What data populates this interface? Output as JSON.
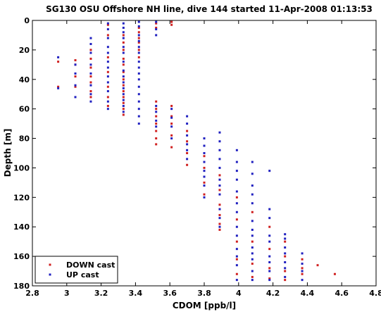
{
  "chart_data": {
    "type": "scatter",
    "title": "SG130 OSU Offshore NH line, dive 144 started 11-Apr-2008 01:13:53",
    "xlabel": "CDOM [ppb/l]",
    "ylabel": "Depth [m]",
    "xlim": [
      2.8,
      4.8
    ],
    "ylim": [
      0,
      180
    ],
    "y_reversed": true,
    "xticks": [
      "2.8",
      "3",
      "3.2",
      "3.4",
      "3.6",
      "3.8",
      "4",
      "4.2",
      "4.4",
      "4.6",
      "4.8"
    ],
    "yticks": [
      "0",
      "20",
      "40",
      "60",
      "80",
      "100",
      "120",
      "140",
      "160",
      "180"
    ],
    "grid": false,
    "legend_position": "bottom-left",
    "series": [
      {
        "name": "DOWN cast",
        "color": "#d02020",
        "points": [
          [
            3.61,
            1
          ],
          [
            3.61,
            3
          ],
          [
            3.52,
            2
          ],
          [
            3.52,
            5
          ],
          [
            3.42,
            5
          ],
          [
            3.42,
            8
          ],
          [
            3.42,
            12
          ],
          [
            3.42,
            15
          ],
          [
            3.42,
            20
          ],
          [
            3.42,
            25
          ],
          [
            3.33,
            10
          ],
          [
            3.33,
            15
          ],
          [
            3.33,
            20
          ],
          [
            3.33,
            26
          ],
          [
            3.33,
            30
          ],
          [
            3.33,
            35
          ],
          [
            3.33,
            40
          ],
          [
            3.33,
            44
          ],
          [
            3.33,
            48
          ],
          [
            3.33,
            52
          ],
          [
            3.33,
            56
          ],
          [
            3.33,
            60
          ],
          [
            3.33,
            64
          ],
          [
            3.24,
            3
          ],
          [
            3.24,
            10
          ],
          [
            3.24,
            25
          ],
          [
            3.24,
            35
          ],
          [
            3.24,
            45
          ],
          [
            3.24,
            52
          ],
          [
            3.24,
            58
          ],
          [
            3.14,
            20
          ],
          [
            3.14,
            26
          ],
          [
            3.14,
            32
          ],
          [
            3.14,
            38
          ],
          [
            3.14,
            42
          ],
          [
            3.14,
            48
          ],
          [
            3.14,
            52
          ],
          [
            3.05,
            27
          ],
          [
            3.05,
            30
          ],
          [
            3.05,
            38
          ],
          [
            3.05,
            45
          ],
          [
            2.95,
            28
          ],
          [
            2.95,
            45
          ],
          [
            3.52,
            55
          ],
          [
            3.52,
            60
          ],
          [
            3.52,
            65
          ],
          [
            3.52,
            70
          ],
          [
            3.52,
            75
          ],
          [
            3.52,
            80
          ],
          [
            3.52,
            84
          ],
          [
            3.61,
            58
          ],
          [
            3.61,
            65
          ],
          [
            3.61,
            70
          ],
          [
            3.61,
            78
          ],
          [
            3.61,
            86
          ],
          [
            3.7,
            75
          ],
          [
            3.7,
            82
          ],
          [
            3.7,
            90
          ],
          [
            3.7,
            98
          ],
          [
            3.8,
            92
          ],
          [
            3.8,
            100
          ],
          [
            3.8,
            110
          ],
          [
            3.8,
            118
          ],
          [
            3.89,
            105
          ],
          [
            3.89,
            115
          ],
          [
            3.89,
            125
          ],
          [
            3.89,
            132
          ],
          [
            3.89,
            138
          ],
          [
            3.89,
            142
          ],
          [
            3.99,
            120
          ],
          [
            3.99,
            135
          ],
          [
            3.99,
            150
          ],
          [
            3.99,
            162
          ],
          [
            3.99,
            172
          ],
          [
            4.08,
            130
          ],
          [
            4.08,
            150
          ],
          [
            4.08,
            165
          ],
          [
            4.08,
            174
          ],
          [
            4.18,
            140
          ],
          [
            4.18,
            155
          ],
          [
            4.18,
            168
          ],
          [
            4.18,
            175
          ],
          [
            4.27,
            150
          ],
          [
            4.27,
            160
          ],
          [
            4.27,
            170
          ],
          [
            4.27,
            176
          ],
          [
            4.37,
            162
          ],
          [
            4.37,
            168
          ],
          [
            4.37,
            172
          ],
          [
            4.46,
            166
          ],
          [
            4.56,
            172
          ]
        ]
      },
      {
        "name": "UP cast",
        "color": "#2020c0",
        "points": [
          [
            2.95,
            25
          ],
          [
            2.95,
            46
          ],
          [
            3.05,
            30
          ],
          [
            3.05,
            36
          ],
          [
            3.05,
            44
          ],
          [
            3.05,
            52
          ],
          [
            3.14,
            12
          ],
          [
            3.14,
            16
          ],
          [
            3.14,
            22
          ],
          [
            3.14,
            30
          ],
          [
            3.14,
            36
          ],
          [
            3.14,
            44
          ],
          [
            3.14,
            50
          ],
          [
            3.14,
            55
          ],
          [
            3.24,
            2
          ],
          [
            3.24,
            6
          ],
          [
            3.24,
            12
          ],
          [
            3.24,
            18
          ],
          [
            3.24,
            22
          ],
          [
            3.24,
            28
          ],
          [
            3.24,
            32
          ],
          [
            3.24,
            38
          ],
          [
            3.24,
            42
          ],
          [
            3.24,
            48
          ],
          [
            3.24,
            55
          ],
          [
            3.24,
            60
          ],
          [
            3.33,
            2
          ],
          [
            3.33,
            5
          ],
          [
            3.33,
            8
          ],
          [
            3.33,
            12
          ],
          [
            3.33,
            18
          ],
          [
            3.33,
            22
          ],
          [
            3.33,
            28
          ],
          [
            3.33,
            34
          ],
          [
            3.33,
            38
          ],
          [
            3.33,
            42
          ],
          [
            3.33,
            46
          ],
          [
            3.33,
            50
          ],
          [
            3.33,
            54
          ],
          [
            3.33,
            58
          ],
          [
            3.33,
            62
          ],
          [
            3.42,
            1
          ],
          [
            3.42,
            4
          ],
          [
            3.42,
            10
          ],
          [
            3.42,
            14
          ],
          [
            3.42,
            18
          ],
          [
            3.42,
            22
          ],
          [
            3.42,
            28
          ],
          [
            3.42,
            32
          ],
          [
            3.42,
            36
          ],
          [
            3.42,
            40
          ],
          [
            3.42,
            45
          ],
          [
            3.42,
            50
          ],
          [
            3.42,
            55
          ],
          [
            3.42,
            60
          ],
          [
            3.42,
            65
          ],
          [
            3.42,
            70
          ],
          [
            3.52,
            1
          ],
          [
            3.52,
            6
          ],
          [
            3.52,
            10
          ],
          [
            3.52,
            58
          ],
          [
            3.52,
            62
          ],
          [
            3.52,
            68
          ],
          [
            3.52,
            72
          ],
          [
            3.61,
            60
          ],
          [
            3.61,
            66
          ],
          [
            3.61,
            72
          ],
          [
            3.61,
            80
          ],
          [
            3.7,
            65
          ],
          [
            3.7,
            70
          ],
          [
            3.7,
            78
          ],
          [
            3.7,
            84
          ],
          [
            3.7,
            88
          ],
          [
            3.7,
            94
          ],
          [
            3.8,
            80
          ],
          [
            3.8,
            85
          ],
          [
            3.8,
            90
          ],
          [
            3.8,
            96
          ],
          [
            3.8,
            102
          ],
          [
            3.8,
            106
          ],
          [
            3.8,
            112
          ],
          [
            3.8,
            120
          ],
          [
            3.89,
            76
          ],
          [
            3.89,
            82
          ],
          [
            3.89,
            88
          ],
          [
            3.89,
            94
          ],
          [
            3.89,
            100
          ],
          [
            3.89,
            108
          ],
          [
            3.89,
            112
          ],
          [
            3.89,
            118
          ],
          [
            3.89,
            128
          ],
          [
            3.89,
            134
          ],
          [
            3.89,
            140
          ],
          [
            3.99,
            88
          ],
          [
            3.99,
            96
          ],
          [
            3.99,
            102
          ],
          [
            3.99,
            108
          ],
          [
            3.99,
            116
          ],
          [
            3.99,
            124
          ],
          [
            3.99,
            130
          ],
          [
            3.99,
            140
          ],
          [
            3.99,
            146
          ],
          [
            3.99,
            155
          ],
          [
            3.99,
            160
          ],
          [
            3.99,
            166
          ],
          [
            3.99,
            176
          ],
          [
            4.08,
            96
          ],
          [
            4.08,
            104
          ],
          [
            4.08,
            112
          ],
          [
            4.08,
            118
          ],
          [
            4.08,
            124
          ],
          [
            4.08,
            136
          ],
          [
            4.08,
            142
          ],
          [
            4.08,
            146
          ],
          [
            4.08,
            154
          ],
          [
            4.08,
            158
          ],
          [
            4.08,
            162
          ],
          [
            4.08,
            170
          ],
          [
            4.08,
            176
          ],
          [
            4.18,
            102
          ],
          [
            4.18,
            128
          ],
          [
            4.18,
            134
          ],
          [
            4.18,
            146
          ],
          [
            4.18,
            150
          ],
          [
            4.18,
            160
          ],
          [
            4.18,
            164
          ],
          [
            4.18,
            170
          ],
          [
            4.18,
            176
          ],
          [
            4.27,
            145
          ],
          [
            4.27,
            148
          ],
          [
            4.27,
            154
          ],
          [
            4.27,
            158
          ],
          [
            4.27,
            164
          ],
          [
            4.27,
            168
          ],
          [
            4.27,
            174
          ],
          [
            4.37,
            158
          ],
          [
            4.37,
            165
          ],
          [
            4.37,
            170
          ],
          [
            4.37,
            176
          ]
        ]
      }
    ]
  }
}
